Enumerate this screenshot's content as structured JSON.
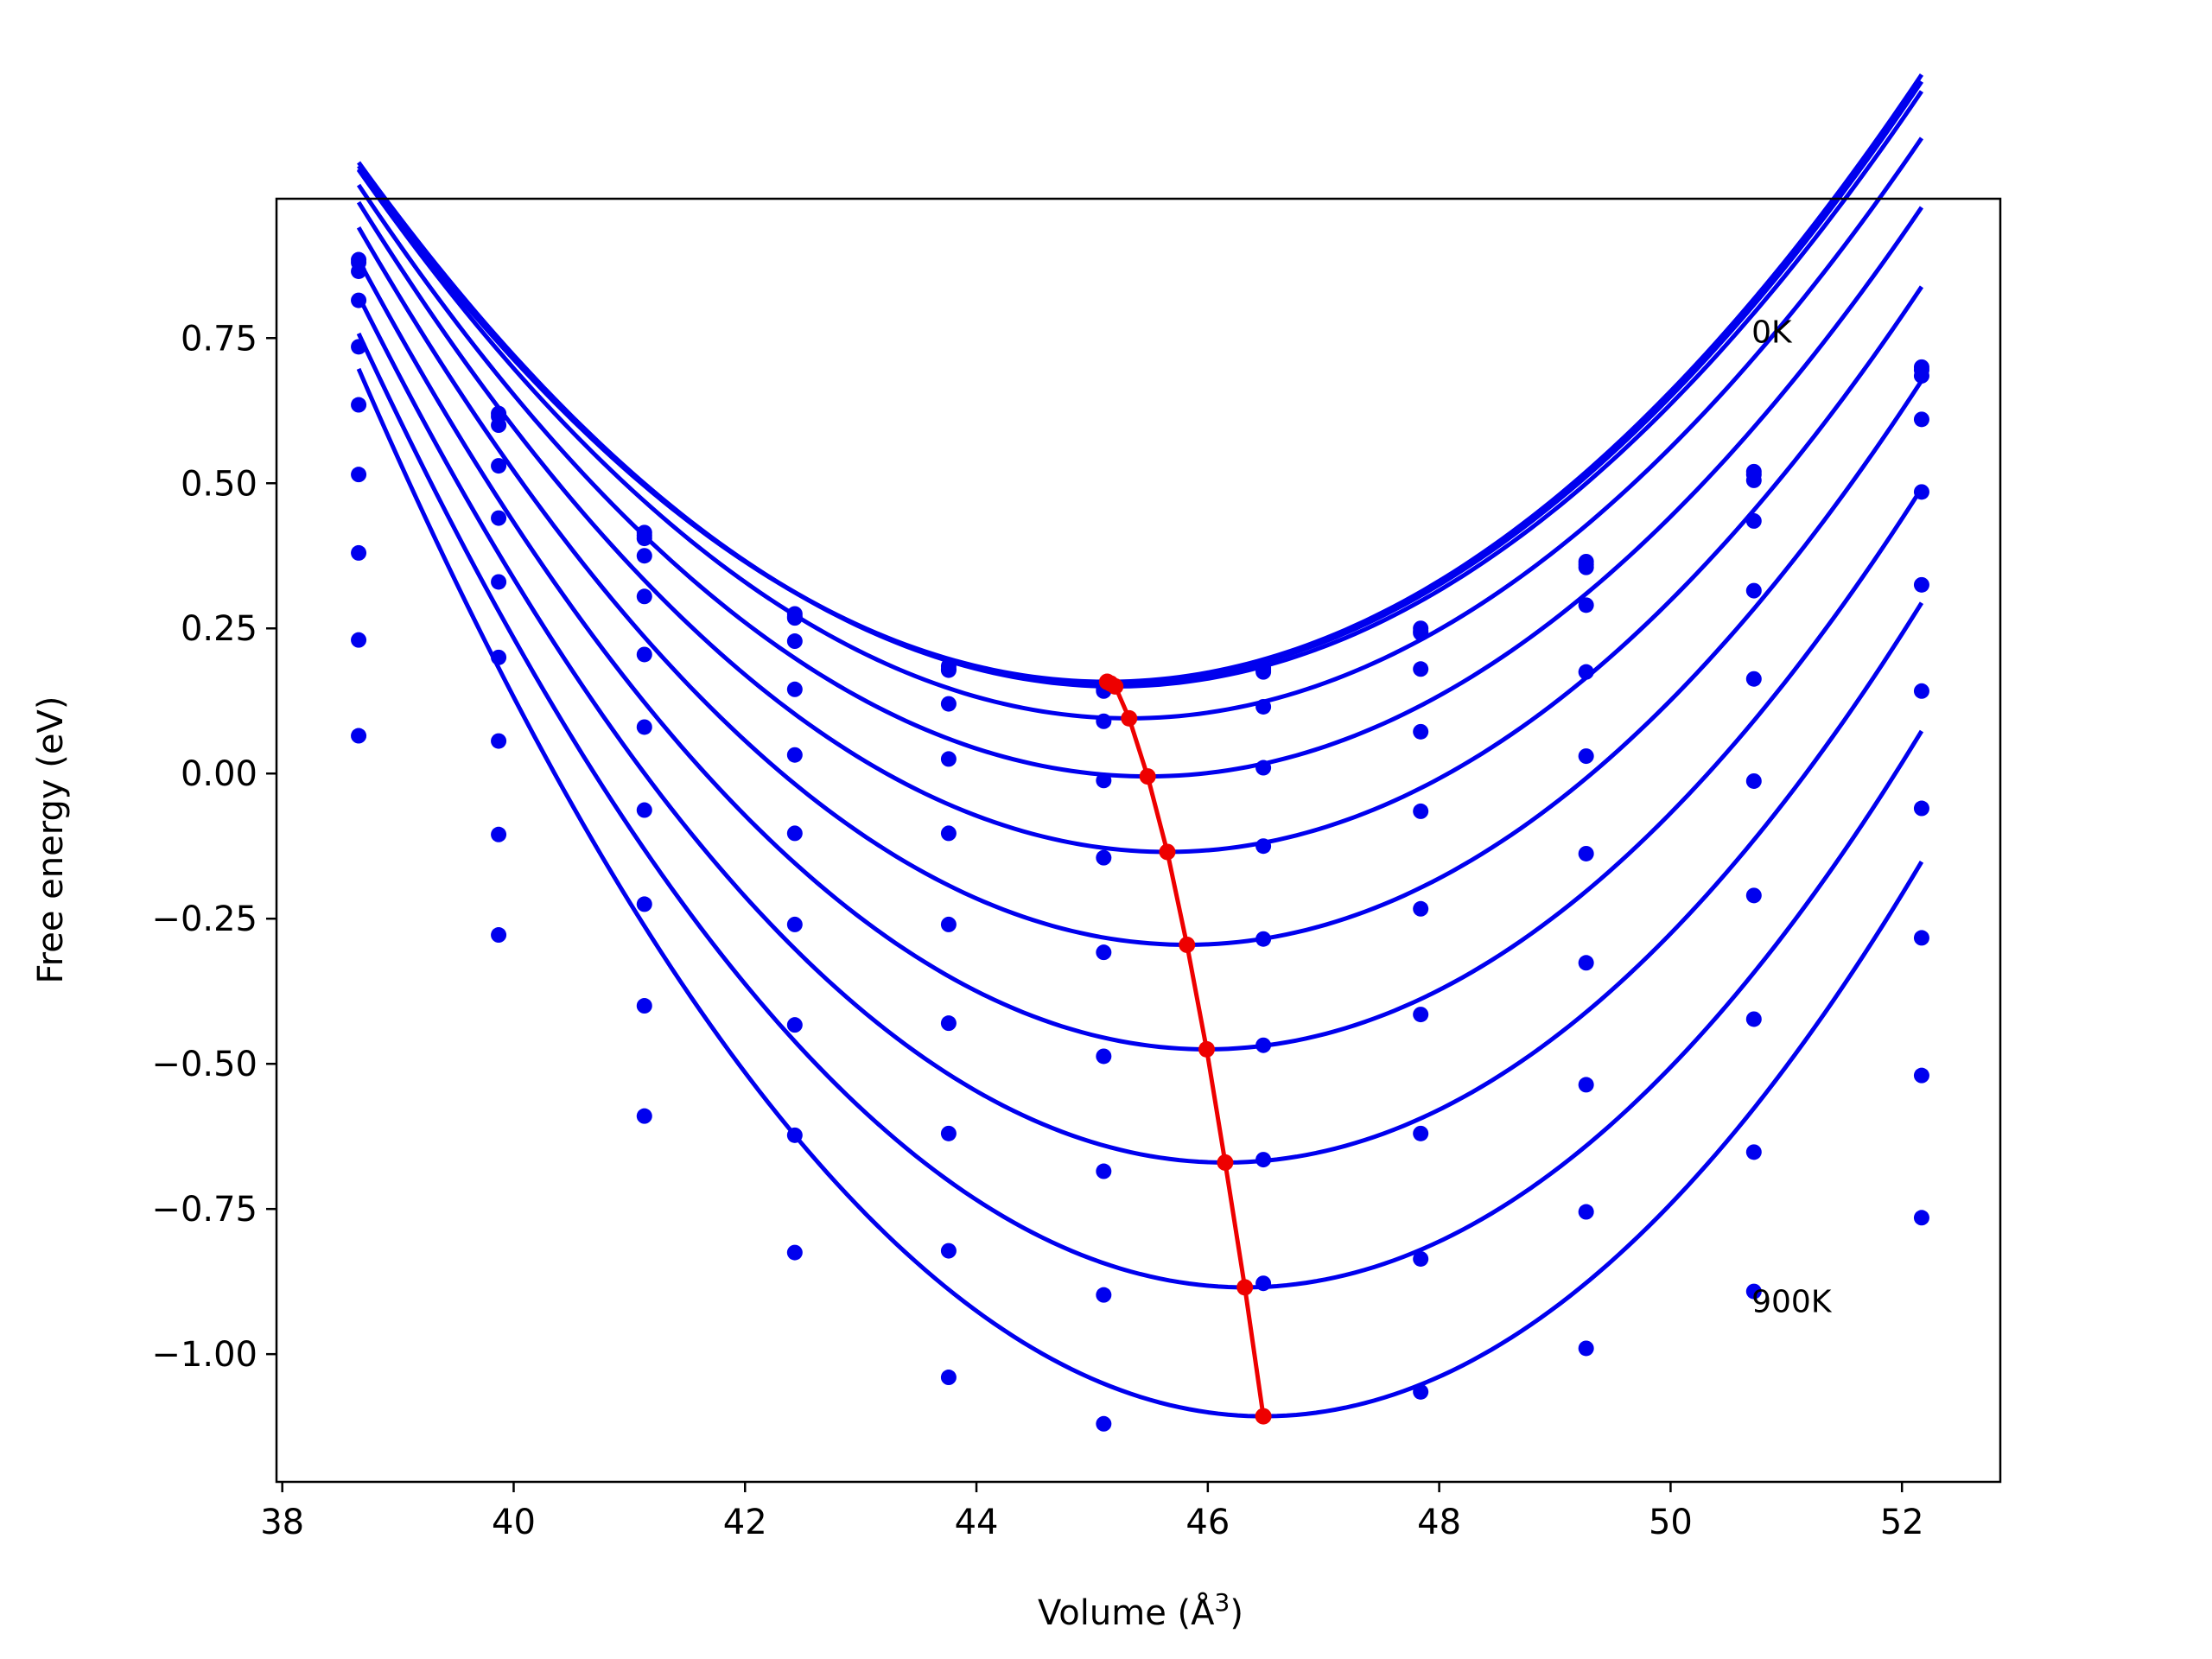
{
  "chart_data": {
    "type": "line",
    "xlabel": "Volume (Å",
    "xlabel_sup": "3",
    "xlabel_close": ")",
    "ylabel": "Free energy (eV)",
    "xlim": [
      37.95,
      52.85
    ],
    "ylim": [
      -1.22,
      0.99
    ],
    "xticks": [
      38,
      40,
      42,
      44,
      46,
      48,
      50,
      52
    ],
    "xtick_labels": [
      "38",
      "40",
      "42",
      "44",
      "46",
      "48",
      "50",
      "52"
    ],
    "yticks": [
      0.75,
      0.5,
      0.25,
      0.0,
      -0.25,
      -0.5,
      -0.75,
      -1.0
    ],
    "ytick_labels": [
      "0.75",
      "0.50",
      "0.25",
      "0.00",
      "−0.25",
      "−0.50",
      "−0.75",
      "−1.00"
    ],
    "grid": false,
    "colors": {
      "curves": "#0000ee",
      "minima": "#ee0000",
      "frame": "#000000"
    },
    "annotations": [
      {
        "text": "0K",
        "x": 50.7,
        "y": 0.76
      },
      {
        "text": "900K",
        "x": 50.7,
        "y": -0.91
      }
    ],
    "volumes": [
      38.66,
      39.87,
      41.13,
      42.43,
      43.76,
      45.1,
      46.48,
      47.84,
      49.27,
      50.72,
      52.17
    ],
    "curves": [
      {
        "a": 0.0211,
        "v0": 45.13,
        "e0": 0.158,
        "points": [
          0.885,
          0.62,
          0.415,
          0.275,
          0.185,
          0.15,
          0.182,
          0.25,
          0.365,
          0.52,
          0.7
        ]
      },
      {
        "a": 0.0211,
        "v0": 45.16,
        "e0": 0.155,
        "points": [
          0.88,
          0.615,
          0.41,
          0.27,
          0.18,
          0.145,
          0.178,
          0.245,
          0.36,
          0.515,
          0.695
        ]
      },
      {
        "a": 0.0211,
        "v0": 45.2,
        "e0": 0.15,
        "points": [
          0.865,
          0.6,
          0.405,
          0.268,
          0.178,
          0.142,
          0.175,
          0.242,
          0.355,
          0.505,
          0.685
        ]
      },
      {
        "a": 0.0213,
        "v0": 45.32,
        "e0": 0.095,
        "points": [
          0.815,
          0.53,
          0.375,
          0.228,
          0.12,
          0.09,
          0.115,
          0.18,
          0.29,
          0.435,
          0.61
        ]
      },
      {
        "a": 0.0219,
        "v0": 45.48,
        "e0": -0.005,
        "points": [
          0.735,
          0.44,
          0.305,
          0.145,
          0.025,
          -0.012,
          0.01,
          0.072,
          0.175,
          0.315,
          0.485
        ]
      },
      {
        "a": 0.0229,
        "v0": 45.65,
        "e0": -0.135,
        "points": [
          0.635,
          0.33,
          0.205,
          0.032,
          -0.103,
          -0.145,
          -0.125,
          -0.065,
          0.03,
          0.163,
          0.325
        ]
      },
      {
        "a": 0.0241,
        "v0": 45.82,
        "e0": -0.295,
        "points": [
          0.515,
          0.2,
          0.08,
          -0.103,
          -0.26,
          -0.308,
          -0.285,
          -0.233,
          -0.138,
          -0.013,
          0.142
        ]
      },
      {
        "a": 0.0253,
        "v0": 45.99,
        "e0": -0.475,
        "points": [
          0.38,
          0.056,
          -0.063,
          -0.26,
          -0.43,
          -0.487,
          -0.468,
          -0.415,
          -0.326,
          -0.21,
          -0.06
        ]
      },
      {
        "a": 0.0266,
        "v0": 46.15,
        "e0": -0.67,
        "points": [
          0.23,
          -0.105,
          -0.225,
          -0.433,
          -0.62,
          -0.685,
          -0.665,
          -0.62,
          -0.536,
          -0.423,
          -0.283
        ]
      },
      {
        "a": 0.028,
        "v0": 46.32,
        "e0": -0.885,
        "points": [
          0.065,
          -0.278,
          -0.4,
          -0.623,
          -0.822,
          -0.898,
          -0.878,
          -0.836,
          -0.755,
          -0.652,
          -0.52
        ]
      },
      {
        "a": 0.0295,
        "v0": 46.48,
        "e0": -1.107,
        "points": [
          null,
          null,
          -0.59,
          -0.825,
          -1.04,
          -1.12,
          null,
          -1.065,
          -0.99,
          -0.892,
          -0.765
        ]
      }
    ],
    "minima": [
      {
        "v": 45.13,
        "e": 0.158
      },
      {
        "v": 45.16,
        "e": 0.155
      },
      {
        "v": 45.2,
        "e": 0.15
      },
      {
        "v": 45.32,
        "e": 0.095
      },
      {
        "v": 45.48,
        "e": -0.005
      },
      {
        "v": 45.65,
        "e": -0.135
      },
      {
        "v": 45.82,
        "e": -0.295
      },
      {
        "v": 45.99,
        "e": -0.475
      },
      {
        "v": 46.15,
        "e": -0.67
      },
      {
        "v": 46.32,
        "e": -0.885
      },
      {
        "v": 46.48,
        "e": -1.107
      }
    ]
  }
}
